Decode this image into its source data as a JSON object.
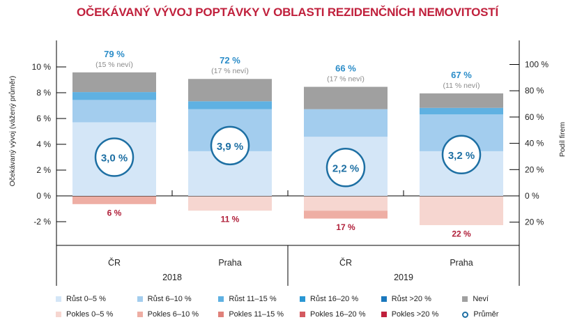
{
  "chart_data": {
    "type": "bar",
    "stacked": true,
    "title": "OČEKÁVANÝ VÝVOJ POPTÁVKY V OBLASTI REZIDENČNÍCH NEMOVITOSTÍ",
    "ylabel_left": "Očekávaný vývoj (vážený průměr)",
    "ylabel_right": "Podíl firem",
    "left_ticks": [
      "10 %",
      "8 %",
      "6 %",
      "4 %",
      "2 %",
      "0 %",
      "-2 %"
    ],
    "left_tick_values": [
      10,
      8,
      6,
      4,
      2,
      0,
      -2
    ],
    "right_ticks": [
      "100 %",
      "80 %",
      "60 %",
      "40 %",
      "20 %",
      "0 %",
      "20 %"
    ],
    "right_tick_values": [
      100,
      80,
      60,
      40,
      20,
      0,
      -20
    ],
    "ylim_right": [
      -40,
      100
    ],
    "categories": [
      "ČR",
      "Praha",
      "ČR",
      "Praha"
    ],
    "groups": [
      {
        "label": "2018",
        "span": 2
      },
      {
        "label": "2019",
        "span": 2
      }
    ],
    "series": [
      {
        "name": "Růst 0–5 %",
        "color": "#d4e6f7",
        "values": [
          56,
          34,
          45,
          34
        ]
      },
      {
        "name": "Růst 6–10 %",
        "color": "#a3cdee",
        "values": [
          17,
          32,
          21,
          28
        ]
      },
      {
        "name": "Růst 11–15 %",
        "color": "#5fb1e2",
        "values": [
          6,
          6,
          0,
          5
        ]
      },
      {
        "name": "Růst 16–20 %",
        "color": "#2a97d4",
        "values": [
          0,
          0,
          0,
          0
        ]
      },
      {
        "name": "Růst >20 %",
        "color": "#1a78bd",
        "values": [
          0,
          0,
          0,
          0
        ]
      },
      {
        "name": "Neví",
        "color": "#a0a0a0",
        "values": [
          15,
          17,
          17,
          11
        ]
      },
      {
        "name": "Pokles 0–5 %",
        "color": "#f6d6d0",
        "values": [
          0,
          -11,
          -11,
          -22
        ]
      },
      {
        "name": "Pokles 6–10 %",
        "color": "#eeaea4",
        "values": [
          -6,
          0,
          -6,
          0
        ]
      },
      {
        "name": "Pokles 11–15 %",
        "color": "#e0817a",
        "values": [
          0,
          0,
          0,
          0
        ]
      },
      {
        "name": "Pokles 16–20 %",
        "color": "#d45a60",
        "values": [
          0,
          0,
          0,
          0
        ]
      },
      {
        "name": "Pokles >20 %",
        "color": "#c0203c",
        "values": [
          0,
          0,
          0,
          0
        ]
      }
    ],
    "growth_labels": [
      "79 %",
      "72 %",
      "66 %",
      "67 %"
    ],
    "nevi_labels": [
      "(15 % neví)",
      "(17 % neví)",
      "(17 % neví)",
      "(11 % neví)"
    ],
    "decline_labels": [
      "6 %",
      "11 %",
      "17 %",
      "22 %"
    ],
    "average_labels": [
      "3,0 %",
      "3,9 %",
      "2,2 %",
      "3,2 %"
    ],
    "average_values": [
      3.0,
      3.9,
      2.2,
      3.2
    ],
    "legend_rows": [
      [
        "Růst 0–5 %",
        "Růst 6–10 %",
        "Růst 11–15 %",
        "Růst 16–20 %",
        "Růst >20 %",
        "Neví"
      ],
      [
        "Pokles 0–5 %",
        "Pokles 6–10 %",
        "Pokles 11–15 %",
        "Pokles 16–20 %",
        "Pokles >20 %",
        "Průměr"
      ]
    ],
    "legend_placement": "bottom"
  }
}
